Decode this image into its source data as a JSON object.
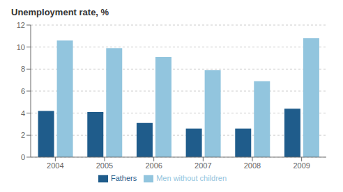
{
  "chart_data": {
    "type": "bar",
    "title": "Unemployment rate, %",
    "categories": [
      "2004",
      "2005",
      "2006",
      "2007",
      "2008",
      "2009"
    ],
    "series": [
      {
        "name": "Fathers",
        "color": "#1F5C8B",
        "values": [
          4.2,
          4.1,
          3.1,
          2.6,
          2.6,
          4.4
        ]
      },
      {
        "name": "Men without children",
        "color": "#92C5DE",
        "values": [
          10.6,
          9.9,
          9.1,
          7.9,
          6.9,
          10.8
        ]
      }
    ],
    "ylim": [
      0,
      12
    ],
    "yticks": [
      0,
      2,
      4,
      6,
      8,
      10,
      12
    ],
    "grid": true,
    "legend": "bottom"
  }
}
